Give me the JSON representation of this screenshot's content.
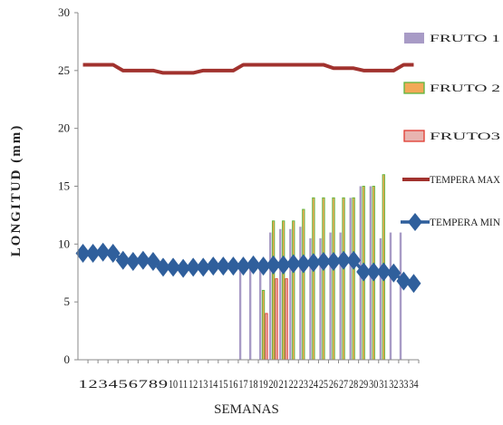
{
  "chart_data": {
    "type": "bar",
    "xlabel": "SEMANAS",
    "ylabel": "LONGITUD (mm)",
    "ylim": [
      0,
      30
    ],
    "yticks": [
      0,
      5,
      10,
      15,
      20,
      25,
      30
    ],
    "x": [
      1,
      2,
      3,
      4,
      5,
      6,
      7,
      8,
      9,
      10,
      11,
      12,
      13,
      14,
      15,
      16,
      17,
      18,
      19,
      20,
      21,
      22,
      23,
      24,
      25,
      26,
      27,
      28,
      29,
      30,
      31,
      32,
      33,
      34
    ],
    "grid": false,
    "legend_position": "right",
    "series": [
      {
        "name": "FRUTO 1",
        "kind": "bar",
        "color": "#a89bc6",
        "values": [
          null,
          null,
          null,
          null,
          null,
          null,
          null,
          null,
          null,
          null,
          null,
          null,
          null,
          null,
          null,
          null,
          8,
          8,
          8,
          11,
          11.3,
          11.3,
          11.5,
          10.5,
          10.5,
          11,
          11,
          14,
          15,
          15,
          10.5,
          11,
          11,
          null
        ]
      },
      {
        "name": "FRUTO 2",
        "kind": "bar",
        "color": "#f2a957",
        "edge": "#5bb53c",
        "values": [
          null,
          null,
          null,
          null,
          null,
          null,
          null,
          null,
          null,
          null,
          null,
          null,
          null,
          null,
          null,
          null,
          null,
          null,
          6,
          12,
          12,
          12,
          13,
          14,
          14,
          14,
          14,
          14,
          15,
          15,
          16,
          null,
          null,
          null
        ]
      },
      {
        "name": "FRUTO3",
        "kind": "bar",
        "color": "#e8b4b0",
        "edge": "#e03a2f",
        "values": [
          null,
          null,
          null,
          null,
          null,
          null,
          null,
          null,
          null,
          null,
          null,
          null,
          null,
          null,
          null,
          null,
          null,
          null,
          4,
          7,
          7,
          null,
          null,
          null,
          null,
          null,
          null,
          null,
          null,
          null,
          null,
          null,
          null,
          null
        ]
      },
      {
        "name": "TEMPERA MAX",
        "kind": "line",
        "color": "#a1322e",
        "values": [
          25.5,
          25.5,
          25.5,
          25.5,
          25,
          25,
          25,
          25,
          24.8,
          24.8,
          24.8,
          24.8,
          25,
          25,
          25,
          25,
          25.5,
          25.5,
          25.5,
          25.5,
          25.5,
          25.5,
          25.5,
          25.5,
          25.5,
          25.2,
          25.2,
          25.2,
          25,
          25,
          25,
          25,
          25.5,
          25.5
        ]
      },
      {
        "name": "TEMPERA MIN",
        "kind": "line-marker",
        "color": "#2f5f9c",
        "values": [
          9.2,
          9.2,
          9.3,
          9.2,
          8.6,
          8.5,
          8.6,
          8.5,
          8,
          8,
          7.9,
          8,
          8,
          8.1,
          8.1,
          8.1,
          8.1,
          8.2,
          8.1,
          8.2,
          8.2,
          8.3,
          8.3,
          8.4,
          8.5,
          8.5,
          8.6,
          8.6,
          7.6,
          7.6,
          7.6,
          7.5,
          6.8,
          6.6
        ]
      }
    ]
  }
}
